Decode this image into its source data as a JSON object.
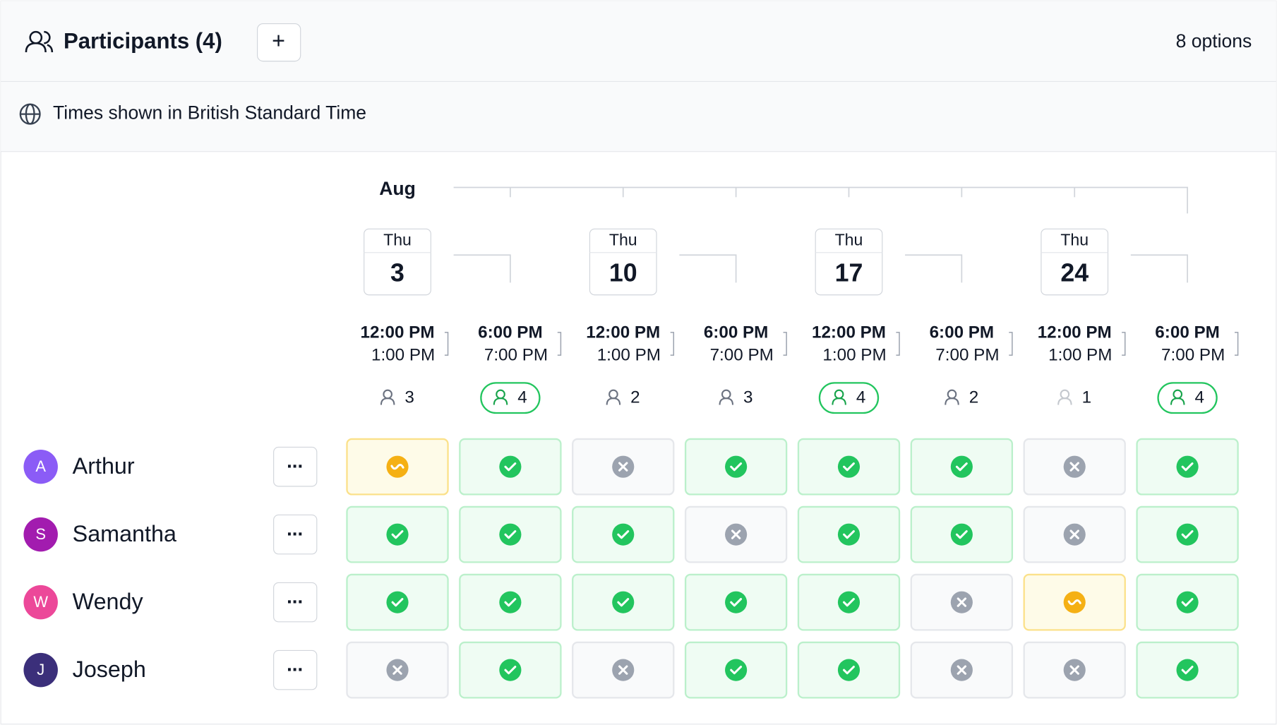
{
  "header": {
    "title": "Participants (4)",
    "add_button": "+",
    "options_count": "8 options"
  },
  "timezone": "Times shown in British Standard Time",
  "month": "Aug",
  "dates": [
    {
      "weekday": "Thu",
      "day": "3"
    },
    {
      "weekday": "Thu",
      "day": "10"
    },
    {
      "weekday": "Thu",
      "day": "17"
    },
    {
      "weekday": "Thu",
      "day": "24"
    }
  ],
  "options": [
    {
      "start": "12:00 PM",
      "end": "1:00 PM",
      "count": 3
    },
    {
      "start": "6:00 PM",
      "end": "7:00 PM",
      "count": 4
    },
    {
      "start": "12:00 PM",
      "end": "1:00 PM",
      "count": 2
    },
    {
      "start": "6:00 PM",
      "end": "7:00 PM",
      "count": 3
    },
    {
      "start": "12:00 PM",
      "end": "1:00 PM",
      "count": 4
    },
    {
      "start": "6:00 PM",
      "end": "7:00 PM",
      "count": 2
    },
    {
      "start": "12:00 PM",
      "end": "1:00 PM",
      "count": 1
    },
    {
      "start": "6:00 PM",
      "end": "7:00 PM",
      "count": 4
    }
  ],
  "participants": [
    {
      "initial": "A",
      "name": "Arthur",
      "color": "#8b5cf6",
      "more": "...",
      "responses": [
        "ifneedbe",
        "yes",
        "no",
        "yes",
        "yes",
        "yes",
        "no",
        "yes"
      ]
    },
    {
      "initial": "S",
      "name": "Samantha",
      "color": "#a21caf",
      "more": "...",
      "responses": [
        "yes",
        "yes",
        "yes",
        "no",
        "yes",
        "yes",
        "no",
        "yes"
      ]
    },
    {
      "initial": "W",
      "name": "Wendy",
      "color": "#ec4899",
      "more": "...",
      "responses": [
        "yes",
        "yes",
        "yes",
        "yes",
        "yes",
        "no",
        "ifneedbe",
        "yes"
      ]
    },
    {
      "initial": "J",
      "name": "Joseph",
      "color": "#3b2f7a",
      "more": "...",
      "responses": [
        "no",
        "yes",
        "no",
        "yes",
        "yes",
        "no",
        "no",
        "yes"
      ]
    }
  ]
}
